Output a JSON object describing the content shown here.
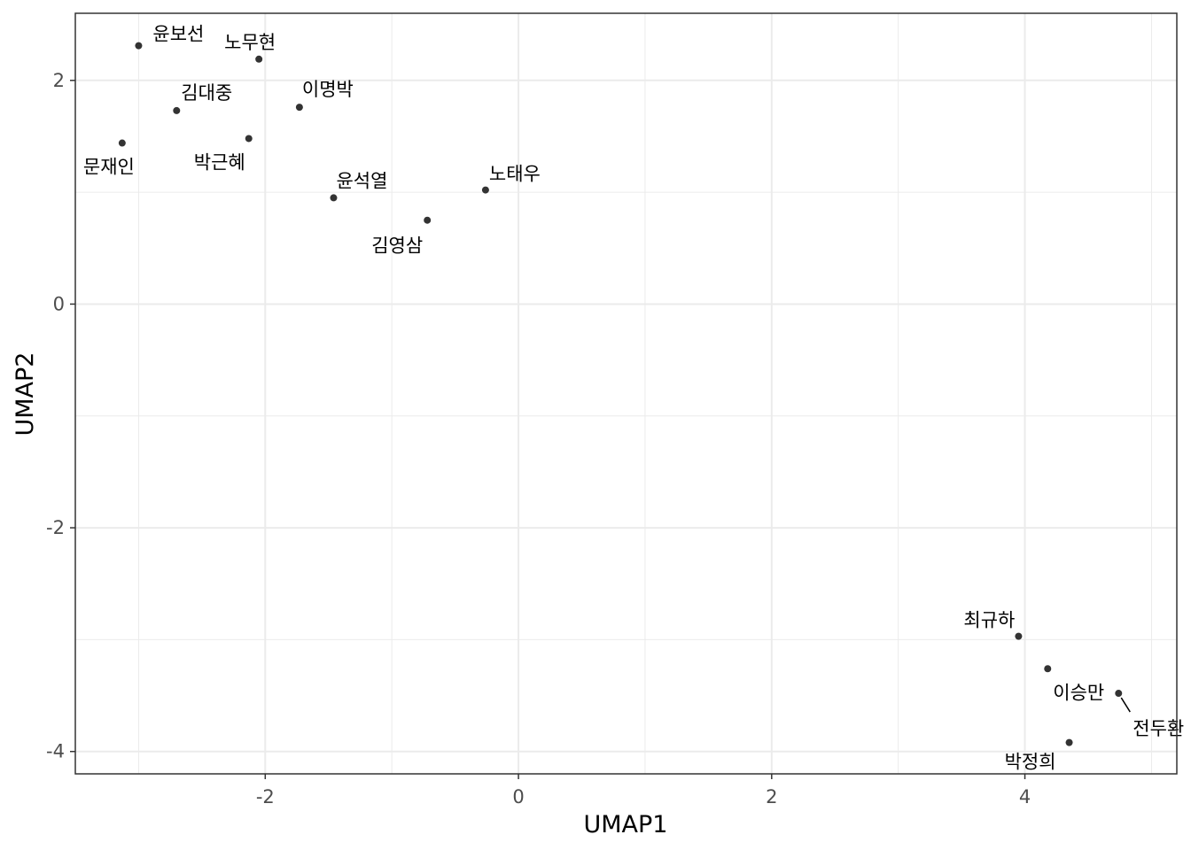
{
  "chart_data": {
    "type": "scatter",
    "title": "",
    "xlabel": "UMAP1",
    "ylabel": "UMAP2",
    "xlim": [
      -3.5,
      5.2
    ],
    "ylim": [
      -4.2,
      2.6
    ],
    "x_ticks": [
      -2,
      0,
      2,
      4
    ],
    "y_ticks": [
      2,
      0,
      -2,
      -4
    ],
    "x_tick_labels": [
      "-2",
      "0",
      "2",
      "4"
    ],
    "y_tick_labels": [
      "2",
      "0",
      "-2",
      "-4"
    ],
    "grid": true,
    "legend": "none",
    "point_color": "#333333",
    "points": [
      {
        "label": "윤보선",
        "x": -3.0,
        "y": 2.31
      },
      {
        "label": "노무현",
        "x": -2.05,
        "y": 2.19
      },
      {
        "label": "김대중",
        "x": -2.7,
        "y": 1.73
      },
      {
        "label": "이명박",
        "x": -1.73,
        "y": 1.76
      },
      {
        "label": "문재인",
        "x": -3.13,
        "y": 1.44
      },
      {
        "label": "박근혜",
        "x": -2.13,
        "y": 1.48
      },
      {
        "label": "윤석열",
        "x": -1.46,
        "y": 0.95
      },
      {
        "label": "노태우",
        "x": -0.26,
        "y": 1.02
      },
      {
        "label": "김영삼",
        "x": -0.72,
        "y": 0.75
      },
      {
        "label": "최규하",
        "x": 3.95,
        "y": -2.97
      },
      {
        "label": "이승만",
        "x": 4.18,
        "y": -3.26
      },
      {
        "label": "전두환",
        "x": 4.74,
        "y": -3.48
      },
      {
        "label": "박정희",
        "x": 4.35,
        "y": -3.92
      }
    ]
  }
}
